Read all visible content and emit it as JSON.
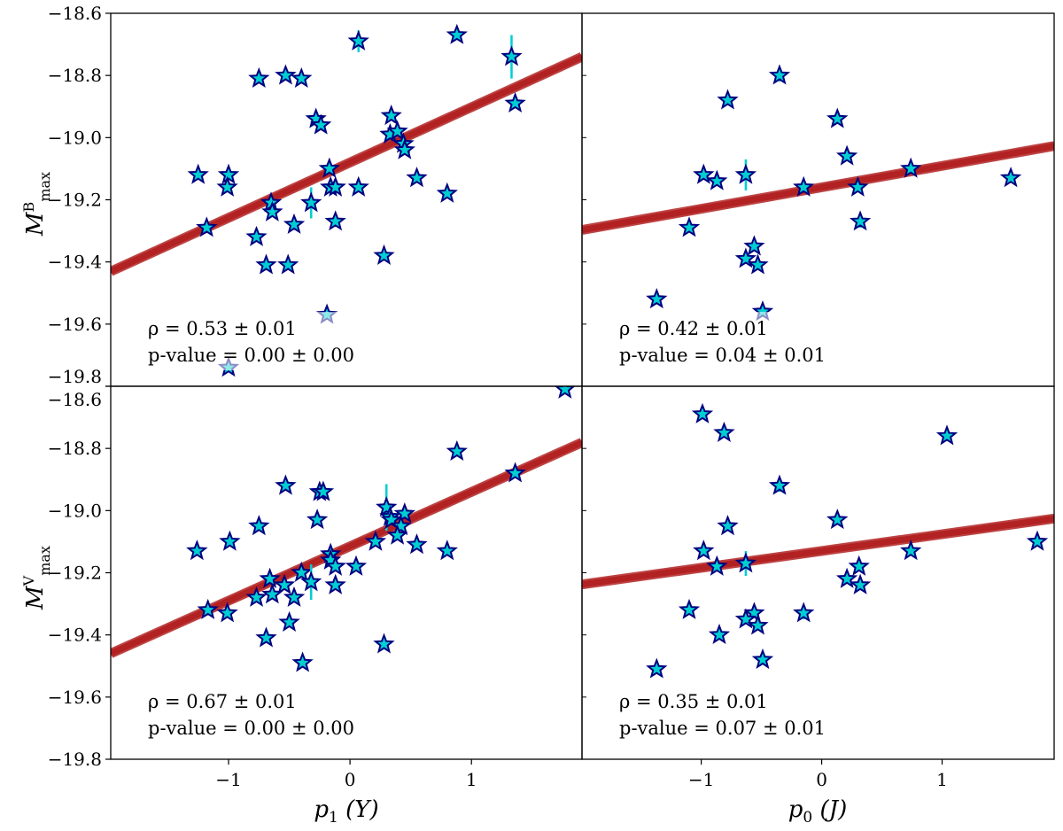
{
  "chart_data": [
    {
      "type": "scatter",
      "panel": "top-left",
      "xlabel": "p1 (Y)",
      "ylabel": "M^B_max",
      "xlim": [
        -1.97,
        1.91
      ],
      "ylim": [
        -19.8,
        -18.6
      ],
      "fit": {
        "slope": 0.178,
        "intercept": -19.08
      },
      "annotation": {
        "rho": "ρ = 0.53 ± 0.01",
        "pvalue": "p-value = 0.00 ± 0.00"
      },
      "points": [
        [
          -1.25,
          -19.12,
          0
        ],
        [
          -1.18,
          -19.29,
          0
        ],
        [
          -1.0,
          -19.12,
          0
        ],
        [
          -1.01,
          -19.16,
          0
        ],
        [
          -0.75,
          -18.81,
          0
        ],
        [
          -0.53,
          -18.8,
          0
        ],
        [
          -0.77,
          -19.32,
          0
        ],
        [
          -0.69,
          -19.41,
          0
        ],
        [
          -0.65,
          -19.21,
          0
        ],
        [
          -0.64,
          -19.24,
          0
        ],
        [
          -0.4,
          -18.81,
          0
        ],
        [
          -0.28,
          -18.94,
          0
        ],
        [
          -0.24,
          -18.96,
          0
        ],
        [
          -0.46,
          -19.28,
          0
        ],
        [
          -0.51,
          -19.41,
          0
        ],
        [
          -0.32,
          -19.21,
          0.05
        ],
        [
          -0.17,
          -19.1,
          0
        ],
        [
          -0.16,
          -19.16,
          0
        ],
        [
          -0.12,
          -19.16,
          0
        ],
        [
          -0.12,
          -19.27,
          0
        ],
        [
          0.07,
          -19.16,
          0
        ],
        [
          0.07,
          -18.69,
          0.035
        ],
        [
          0.28,
          -19.38,
          0
        ],
        [
          0.34,
          -18.93,
          0
        ],
        [
          0.33,
          -18.99,
          0
        ],
        [
          0.39,
          -18.98,
          0
        ],
        [
          0.44,
          -19.02,
          0
        ],
        [
          0.45,
          -19.04,
          0
        ],
        [
          0.55,
          -19.13,
          0
        ],
        [
          0.8,
          -19.18,
          0
        ],
        [
          0.88,
          -18.67,
          0
        ],
        [
          1.33,
          -18.74,
          0.07
        ],
        [
          1.36,
          -18.89,
          0
        ],
        [
          -0.19,
          -19.57,
          0
        ],
        [
          -1.0,
          -19.74,
          0
        ]
      ]
    },
    {
      "type": "scatter",
      "panel": "top-right",
      "xlabel": "p0 (J)",
      "ylabel": "M^B_max",
      "xlim": [
        -1.99,
        1.93
      ],
      "ylim": [
        -19.8,
        -18.6
      ],
      "fit": {
        "slope": 0.069,
        "intercept": -19.16
      },
      "annotation": {
        "rho": "ρ = 0.42 ± 0.01",
        "pvalue": "p-value = 0.04 ± 0.01"
      },
      "points": [
        [
          -0.35,
          -18.8,
          0.02
        ],
        [
          -0.78,
          -18.88,
          0
        ],
        [
          0.13,
          -18.94,
          0
        ],
        [
          0.21,
          -19.06,
          0
        ],
        [
          -0.98,
          -19.12,
          0
        ],
        [
          -0.87,
          -19.14,
          0
        ],
        [
          -0.63,
          -19.12,
          0.05
        ],
        [
          -0.15,
          -19.16,
          0
        ],
        [
          0.3,
          -19.16,
          0
        ],
        [
          0.32,
          -19.27,
          0.02
        ],
        [
          -1.1,
          -19.29,
          0
        ],
        [
          -0.56,
          -19.35,
          0
        ],
        [
          -0.63,
          -19.39,
          0
        ],
        [
          -0.53,
          -19.41,
          0
        ],
        [
          -1.37,
          -19.52,
          0
        ],
        [
          -0.49,
          -19.56,
          0
        ],
        [
          0.74,
          -19.1,
          0
        ],
        [
          1.57,
          -19.13,
          0
        ]
      ]
    },
    {
      "type": "scatter",
      "panel": "bottom-left",
      "xlabel": "p1 (Y)",
      "ylabel": "M^V_max",
      "xlim": [
        -1.97,
        1.91
      ],
      "ylim": [
        -19.8,
        -18.6
      ],
      "fit": {
        "slope": 0.175,
        "intercept": -19.115
      },
      "annotation": {
        "rho": "ρ = 0.67 ± 0.01",
        "pvalue": "p-value = 0.00 ± 0.00"
      },
      "points": [
        [
          -1.26,
          -19.13,
          0
        ],
        [
          -0.99,
          -19.1,
          0
        ],
        [
          -0.75,
          -19.05,
          0
        ],
        [
          -0.53,
          -18.92,
          0
        ],
        [
          -0.25,
          -18.94,
          0
        ],
        [
          -0.22,
          -18.94,
          0
        ],
        [
          -0.27,
          -19.03,
          0
        ],
        [
          -0.16,
          -19.14,
          0
        ],
        [
          -0.16,
          -19.16,
          0
        ],
        [
          -0.12,
          -19.18,
          0
        ],
        [
          0.05,
          -19.18,
          0
        ],
        [
          -0.12,
          -19.24,
          0
        ],
        [
          0.21,
          -19.1,
          0
        ],
        [
          0.3,
          -18.99,
          0.075
        ],
        [
          0.33,
          -19.02,
          0
        ],
        [
          0.45,
          -19.01,
          0
        ],
        [
          0.34,
          -19.03,
          0
        ],
        [
          0.42,
          -19.05,
          0
        ],
        [
          0.39,
          -19.08,
          0
        ],
        [
          0.55,
          -19.11,
          0
        ],
        [
          0.8,
          -19.13,
          0
        ],
        [
          -1.17,
          -19.32,
          0
        ],
        [
          -1.01,
          -19.33,
          0
        ],
        [
          -0.77,
          -19.28,
          0
        ],
        [
          -0.66,
          -19.22,
          0
        ],
        [
          -0.64,
          -19.27,
          0
        ],
        [
          -0.54,
          -19.24,
          0
        ],
        [
          -0.46,
          -19.28,
          0
        ],
        [
          -0.4,
          -19.2,
          0
        ],
        [
          -0.32,
          -19.23,
          0.057
        ],
        [
          -0.5,
          -19.36,
          0
        ],
        [
          -0.69,
          -19.41,
          0
        ],
        [
          -0.39,
          -19.49,
          0
        ],
        [
          0.28,
          -19.43,
          0
        ],
        [
          0.88,
          -18.81,
          0
        ],
        [
          1.36,
          -18.88,
          0
        ],
        [
          1.77,
          -18.61,
          0
        ]
      ]
    },
    {
      "type": "scatter",
      "panel": "bottom-right",
      "xlabel": "p0 (J)",
      "ylabel": "M^V_max",
      "xlim": [
        -1.99,
        1.93
      ],
      "ylim": [
        -19.8,
        -18.6
      ],
      "fit": {
        "slope": 0.054,
        "intercept": -19.13
      },
      "annotation": {
        "rho": "ρ = 0.35 ± 0.01",
        "pvalue": "p-value = 0.07 ± 0.01"
      },
      "points": [
        [
          -0.99,
          -18.69,
          0
        ],
        [
          -0.81,
          -18.75,
          0
        ],
        [
          1.04,
          -18.76,
          0
        ],
        [
          -0.35,
          -18.92,
          0.02
        ],
        [
          -0.78,
          -19.05,
          0
        ],
        [
          0.13,
          -19.03,
          0
        ],
        [
          -0.98,
          -19.13,
          0
        ],
        [
          -0.87,
          -19.18,
          0
        ],
        [
          -0.63,
          -19.17,
          0.04
        ],
        [
          0.74,
          -19.13,
          0
        ],
        [
          1.79,
          -19.1,
          0
        ],
        [
          0.31,
          -19.18,
          0
        ],
        [
          0.21,
          -19.22,
          0
        ],
        [
          0.32,
          -19.24,
          0
        ],
        [
          -1.1,
          -19.32,
          0
        ],
        [
          -0.56,
          -19.33,
          0
        ],
        [
          -0.63,
          -19.35,
          0
        ],
        [
          -0.53,
          -19.37,
          0
        ],
        [
          -0.15,
          -19.33,
          0.02
        ],
        [
          -0.85,
          -19.4,
          0
        ],
        [
          -0.49,
          -19.48,
          0
        ],
        [
          -1.37,
          -19.51,
          0
        ]
      ]
    }
  ],
  "axes": {
    "yticks": [
      "−18.6",
      "−18.8",
      "−19.0",
      "−19.2",
      "−19.4",
      "−19.6",
      "−19.8"
    ],
    "ytick_values": [
      -18.6,
      -18.8,
      -19.0,
      -19.2,
      -19.4,
      -19.6,
      -19.8
    ],
    "xticks": [
      "−1",
      "0",
      "1"
    ],
    "xtick_values": [
      -1,
      0,
      1
    ],
    "xlabel_left": {
      "sym": "p",
      "sub": "1",
      "paren": "(Y)"
    },
    "xlabel_right": {
      "sym": "p",
      "sub": "0",
      "paren": "(J)"
    },
    "ylabel_top": {
      "sym": "M",
      "sup": "B",
      "sub": "max"
    },
    "ylabel_bottom": {
      "sym": "M",
      "sup": "V",
      "sub": "max"
    }
  },
  "colors": {
    "star_fill": "#00CED1",
    "star_edge": "#000080",
    "fit": "#B22222",
    "errorbar": "#00CED1"
  }
}
